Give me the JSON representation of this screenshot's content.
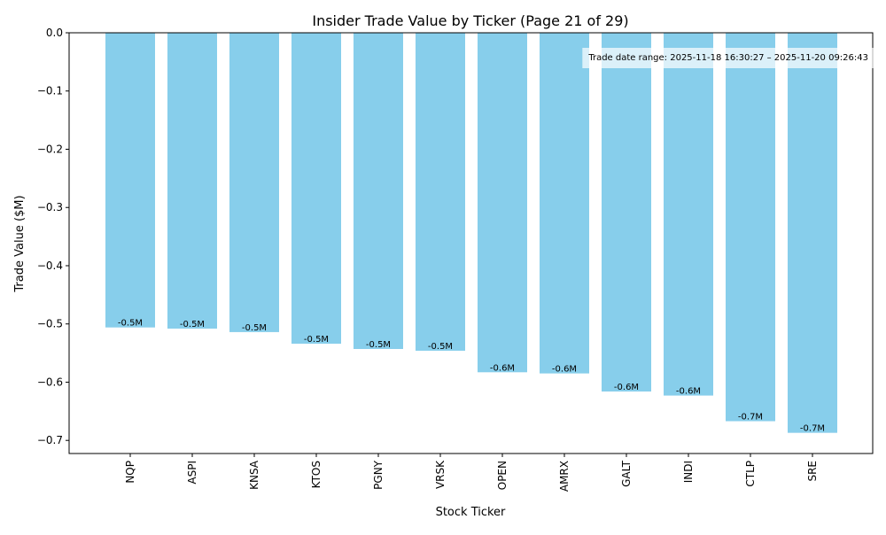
{
  "chart_data": {
    "type": "bar",
    "title": "Insider Trade Value by Ticker (Page 21 of 29)",
    "xlabel": "Stock Ticker",
    "ylabel": "Trade Value ($M)",
    "categories": [
      "NQP",
      "ASPI",
      "KNSA",
      "KTOS",
      "PGNY",
      "VRSK",
      "OPEN",
      "AMRX",
      "GALT",
      "INDI",
      "CTLP",
      "SRE"
    ],
    "values": [
      -0.506,
      -0.508,
      -0.514,
      -0.534,
      -0.543,
      -0.546,
      -0.583,
      -0.585,
      -0.616,
      -0.623,
      -0.667,
      -0.687
    ],
    "data_labels": [
      "-0.5M",
      "-0.5M",
      "-0.5M",
      "-0.5M",
      "-0.5M",
      "-0.5M",
      "-0.6M",
      "-0.6M",
      "-0.6M",
      "-0.6M",
      "-0.7M",
      "-0.7M"
    ],
    "ylim": [
      -0.7225,
      0.0
    ],
    "yticks": [
      0.0,
      -0.1,
      -0.2,
      -0.3,
      -0.4,
      -0.5,
      -0.6,
      -0.7
    ],
    "ytick_labels": [
      "0.0",
      "−0.1",
      "−0.2",
      "−0.3",
      "−0.4",
      "−0.5",
      "−0.6",
      "−0.7"
    ],
    "annotation": "Trade date range: 2025-11-18 16:30:27 – 2025-11-20 09:26:43",
    "annotation_placement": "top-right",
    "bar_color": "#87CEEB",
    "grid": false,
    "legend": false
  }
}
